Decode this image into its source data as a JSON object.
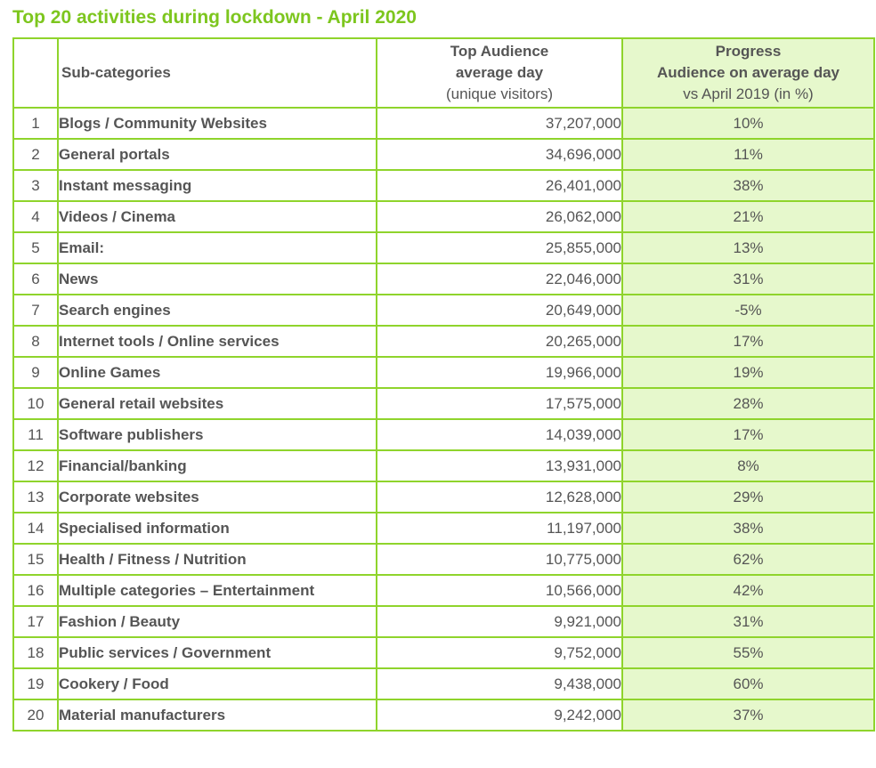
{
  "title": "Top 20 activities during lockdown - April 2020",
  "header": {
    "subcategories": "Sub-categories",
    "audience_line1": "Top Audience",
    "audience_line2": "average day",
    "audience_line3": "(unique visitors)",
    "progress_line1": "Progress",
    "progress_line2": "Audience on average day",
    "progress_line3": "vs April 2019 (in %)"
  },
  "rows": [
    {
      "rank": "1",
      "name": "Blogs / Community Websites",
      "audience": "37,207,000",
      "progress": "10%"
    },
    {
      "rank": "2",
      "name": "General portals",
      "audience": "34,696,000",
      "progress": "11%"
    },
    {
      "rank": "3",
      "name": "Instant messaging",
      "audience": "26,401,000",
      "progress": "38%"
    },
    {
      "rank": "4",
      "name": "Videos / Cinema",
      "audience": "26,062,000",
      "progress": "21%"
    },
    {
      "rank": "5",
      "name": "Email:",
      "audience": "25,855,000",
      "progress": "13%"
    },
    {
      "rank": "6",
      "name": "News",
      "audience": "22,046,000",
      "progress": "31%"
    },
    {
      "rank": "7",
      "name": "Search engines",
      "audience": "20,649,000",
      "progress": "-5%"
    },
    {
      "rank": "8",
      "name": "Internet tools / Online services",
      "audience": "20,265,000",
      "progress": "17%"
    },
    {
      "rank": "9",
      "name": "Online Games",
      "audience": "19,966,000",
      "progress": "19%"
    },
    {
      "rank": "10",
      "name": "General retail websites",
      "audience": "17,575,000",
      "progress": "28%"
    },
    {
      "rank": "11",
      "name": "Software publishers",
      "audience": "14,039,000",
      "progress": "17%"
    },
    {
      "rank": "12",
      "name": "Financial/banking",
      "audience": "13,931,000",
      "progress": "8%"
    },
    {
      "rank": "13",
      "name": "Corporate websites",
      "audience": "12,628,000",
      "progress": "29%"
    },
    {
      "rank": "14",
      "name": "Specialised information",
      "audience": "11,197,000",
      "progress": "38%"
    },
    {
      "rank": "15",
      "name": "Health / Fitness / Nutrition",
      "audience": "10,775,000",
      "progress": "62%"
    },
    {
      "rank": "16",
      "name": "Multiple categories – Entertainment",
      "audience": "10,566,000",
      "progress": "42%"
    },
    {
      "rank": "17",
      "name": "Fashion / Beauty",
      "audience": "9,921,000",
      "progress": "31%"
    },
    {
      "rank": "18",
      "name": "Public services / Government",
      "audience": "9,752,000",
      "progress": "55%"
    },
    {
      "rank": "19",
      "name": "Cookery / Food",
      "audience": "9,438,000",
      "progress": "60%"
    },
    {
      "rank": "20",
      "name": "Material manufacturers",
      "audience": "9,242,000",
      "progress": "37%"
    }
  ],
  "colors": {
    "title": "#7dc61e",
    "border": "#8fd42c",
    "progress_fill": "#e6f8cc",
    "text": "#555555"
  }
}
